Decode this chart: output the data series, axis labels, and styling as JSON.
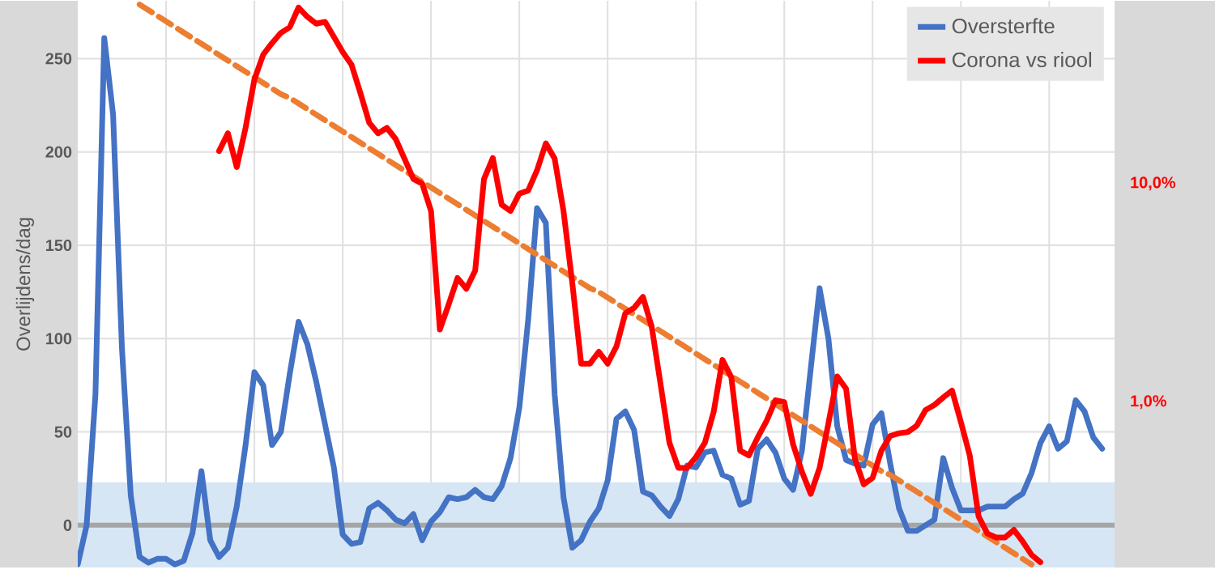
{
  "chart_data": {
    "type": "line",
    "ylabel": "Overlijdens/dag",
    "categories": [
      null,
      null,
      null,
      null,
      null,
      null,
      null,
      null,
      null,
      null,
      null,
      null,
      null,
      null,
      null,
      null,
      null,
      null,
      null,
      null,
      null,
      null,
      null,
      null,
      null,
      null,
      null,
      null,
      null,
      null,
      null,
      null,
      null,
      null,
      null,
      null,
      null,
      null,
      null,
      null,
      null,
      null,
      null,
      null,
      null,
      null,
      null,
      null,
      null,
      null,
      null,
      null,
      null,
      null,
      null,
      null,
      null,
      null,
      null,
      null,
      null,
      null,
      null,
      null,
      null,
      null,
      null,
      null,
      null,
      null,
      null,
      null,
      null,
      null,
      null,
      null,
      null,
      null,
      null,
      null,
      null,
      null,
      null,
      null,
      null,
      null,
      null,
      null,
      null,
      null,
      null,
      null,
      null,
      null,
      null,
      null,
      null,
      null,
      null,
      null,
      null,
      null,
      null,
      null,
      null,
      null,
      null,
      null,
      null,
      null,
      null,
      null,
      null,
      null,
      null,
      null,
      null
    ],
    "ylim": [
      -22.6,
      281
    ],
    "yticks": [
      0,
      50,
      100,
      150,
      200,
      250
    ],
    "y2lim": [
      0.175,
      68.7
    ],
    "y2ticks": [
      {
        "value": 1,
        "label": "1,0%"
      },
      {
        "value": 10,
        "label": "10,0%"
      }
    ],
    "log": "y2",
    "grid": true,
    "legend": "top right",
    "tick_labels": "y",
    "marker": "none",
    "bands": [
      {
        "axis": "y",
        "from": -22.6,
        "to": 23,
        "color": "#d6e6f4"
      }
    ],
    "ref_lines": [
      {
        "axis": "y",
        "value": 0,
        "color": "#a6a6a6"
      }
    ],
    "series": [
      {
        "name": "Oversterfte",
        "color": "#4472c4",
        "values": [
          -21,
          0,
          70,
          261,
          220,
          95,
          16,
          -17,
          -20,
          -18,
          -18,
          -21,
          -19,
          -4,
          29,
          -8,
          -17,
          -12,
          10,
          43,
          82,
          75,
          43,
          50,
          81,
          109,
          97,
          77,
          54,
          31,
          -5,
          -10,
          -9,
          9,
          12,
          8,
          3,
          1,
          6,
          -8,
          2,
          7,
          15,
          14,
          15,
          19,
          15,
          14,
          21,
          36,
          63,
          110,
          170,
          162,
          70,
          15,
          -12,
          -8,
          2,
          9,
          24,
          57,
          61,
          51,
          18,
          16,
          10,
          5,
          14,
          32,
          31,
          39,
          40,
          27,
          25,
          11,
          13,
          41,
          46,
          39,
          25,
          19,
          40,
          84,
          127,
          100,
          53,
          35,
          33,
          32,
          54,
          60,
          33,
          9,
          -3,
          -3,
          0,
          3,
          36,
          20,
          8,
          8,
          8,
          10,
          10,
          10,
          14,
          17,
          28,
          44,
          53,
          41,
          45,
          67,
          61,
          47,
          41
        ]
      },
      {
        "name": "Corona vs riool",
        "color": "#ff0000",
        "axis": "y2",
        "values": [
          null,
          null,
          null,
          null,
          null,
          null,
          null,
          null,
          null,
          null,
          null,
          null,
          null,
          null,
          null,
          null,
          14.1,
          17.0,
          11.9,
          18,
          30,
          39,
          44,
          49,
          52,
          64,
          58,
          54,
          55,
          47,
          40,
          35,
          26,
          19,
          17,
          18,
          16,
          13,
          10.5,
          10,
          7.5,
          2.15,
          2.8,
          3.7,
          3.3,
          4,
          10.5,
          13.1,
          8,
          7.5,
          9,
          9.3,
          11.5,
          15.3,
          13,
          7.5,
          3.5,
          1.5,
          1.5,
          1.7,
          1.5,
          1.8,
          2.55,
          2.7,
          3.03,
          2.2,
          1.2,
          0.65,
          0.5,
          0.5,
          0.56,
          0.65,
          0.9,
          1.56,
          1.3,
          0.6,
          0.57,
          0.69,
          0.82,
          1.02,
          1.0,
          0.64,
          0.48,
          0.38,
          0.5,
          0.8,
          1.31,
          1.15,
          0.55,
          0.42,
          0.45,
          0.6,
          0.7,
          0.72,
          0.73,
          0.78,
          0.92,
          0.97,
          1.05,
          1.13,
          0.81,
          0.57,
          0.3,
          0.25,
          0.24,
          0.24,
          0.26,
          0.23,
          0.2,
          0.185,
          null,
          null,
          null,
          null,
          null,
          null,
          null
        ]
      },
      {
        "type": "line",
        "color": "#ed7d31",
        "line_style": "dashed",
        "values": [
          null,
          null,
          null,
          null,
          null,
          null,
          null,
          279,
          276,
          273,
          270,
          267,
          264,
          261,
          258,
          255,
          252,
          249,
          246,
          243,
          240,
          237,
          234,
          231,
          229,
          226,
          223,
          220,
          217,
          214,
          211,
          208,
          205,
          202,
          199,
          196,
          193,
          190,
          187,
          184,
          181,
          178,
          175,
          172,
          169,
          166,
          163,
          160,
          157,
          154,
          151,
          148,
          145,
          142,
          139,
          136,
          133,
          130,
          127,
          125,
          122,
          119,
          116,
          113,
          110,
          107,
          104,
          101,
          98,
          95,
          92,
          89,
          86,
          83,
          80,
          77,
          74,
          71,
          68,
          65,
          62,
          59,
          56,
          53,
          50,
          47,
          44,
          41,
          38,
          35,
          32,
          29,
          27,
          24,
          21,
          18,
          15,
          12,
          9,
          6,
          3,
          0,
          -3,
          -6,
          -9,
          -12,
          -15,
          -18,
          -21,
          null,
          null,
          null,
          null,
          null,
          null,
          null,
          null
        ]
      }
    ]
  }
}
